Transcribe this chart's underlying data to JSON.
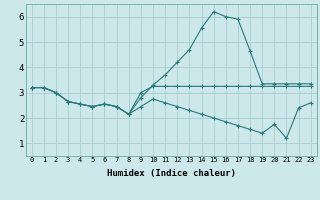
{
  "title": "",
  "xlabel": "Humidex (Indice chaleur)",
  "ylabel": "",
  "bg_color": "#cce8ea",
  "grid_color": "#aacdd2",
  "line_color": "#2a7a7a",
  "ylim": [
    0.5,
    6.5
  ],
  "xlim": [
    -0.5,
    23.5
  ],
  "yticks": [
    1,
    2,
    3,
    4,
    5,
    6
  ],
  "xtick_labels": [
    "0",
    "1",
    "2",
    "3",
    "4",
    "5",
    "6",
    "7",
    "8",
    "9",
    "10",
    "11",
    "12",
    "13",
    "14",
    "15",
    "16",
    "17",
    "18",
    "19",
    "20",
    "21",
    "22",
    "23"
  ],
  "line1_x": [
    0,
    1,
    2,
    3,
    4,
    5,
    6,
    7,
    8,
    9,
    10,
    11,
    12,
    13,
    14,
    15,
    16,
    17,
    18,
    19,
    20,
    21,
    22,
    23
  ],
  "line1_y": [
    3.2,
    3.2,
    3.0,
    2.65,
    2.55,
    2.45,
    2.55,
    2.45,
    2.15,
    2.8,
    3.3,
    3.7,
    4.2,
    4.7,
    5.55,
    6.2,
    6.0,
    5.9,
    4.65,
    3.35,
    3.35,
    3.35,
    3.35,
    3.35
  ],
  "line2_x": [
    0,
    1,
    2,
    3,
    4,
    5,
    6,
    7,
    8,
    9,
    10,
    11,
    12,
    13,
    14,
    15,
    16,
    17,
    18,
    19,
    20,
    21,
    22,
    23
  ],
  "line2_y": [
    3.2,
    3.2,
    3.0,
    2.65,
    2.55,
    2.45,
    2.55,
    2.45,
    2.15,
    3.0,
    3.25,
    3.25,
    3.25,
    3.25,
    3.25,
    3.25,
    3.25,
    3.25,
    3.25,
    3.25,
    3.25,
    3.25,
    3.25,
    3.25
  ],
  "line3_x": [
    0,
    1,
    2,
    3,
    4,
    5,
    6,
    7,
    8,
    9,
    10,
    11,
    12,
    13,
    14,
    15,
    16,
    17,
    18,
    19,
    20,
    21,
    22,
    23
  ],
  "line3_y": [
    3.2,
    3.2,
    3.0,
    2.65,
    2.55,
    2.45,
    2.55,
    2.45,
    2.15,
    2.45,
    2.75,
    2.6,
    2.45,
    2.3,
    2.15,
    2.0,
    1.85,
    1.7,
    1.55,
    1.4,
    1.75,
    1.2,
    2.4,
    2.6
  ],
  "markersize": 2.0,
  "linewidth": 0.8
}
